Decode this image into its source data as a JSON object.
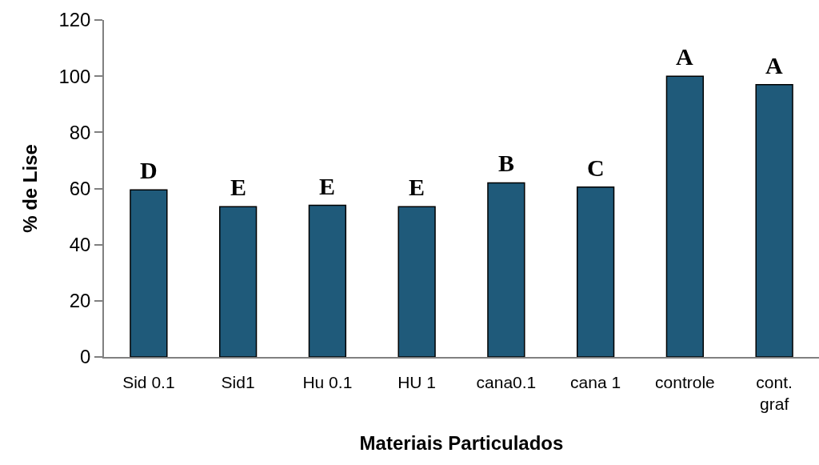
{
  "chart_data": {
    "type": "bar",
    "categories": [
      "Sid 0.1",
      "Sid1",
      "Hu 0.1",
      "HU 1",
      "cana0.1",
      "cana 1",
      "controle",
      "cont.\ngraf"
    ],
    "values": [
      59.5,
      53.5,
      54,
      53.5,
      62,
      60.5,
      100,
      97
    ],
    "color": "#1f5a7a",
    "ylim": [
      0,
      120
    ],
    "yticks": [
      0,
      20,
      40,
      60,
      80,
      100,
      120
    ],
    "xlabel": "Materiais Particulados",
    "ylabel": "% de Lise",
    "annotations": [
      {
        "text": "D",
        "x": "Sid 0.1",
        "y": 59.5
      },
      {
        "text": "E",
        "x": "Sid1",
        "y": 53.5
      },
      {
        "text": "E",
        "x": "Hu 0.1",
        "y": 54
      },
      {
        "text": "E",
        "x": "HU 1",
        "y": 53.5
      },
      {
        "text": "B",
        "x": "cana0.1",
        "y": 62
      },
      {
        "text": "C",
        "x": "cana 1",
        "y": 60.5
      },
      {
        "text": "A",
        "x": "controle",
        "y": 100
      },
      {
        "text": "A",
        "x": "cont.\ngraf",
        "y": 97
      }
    ],
    "grid": false
  }
}
